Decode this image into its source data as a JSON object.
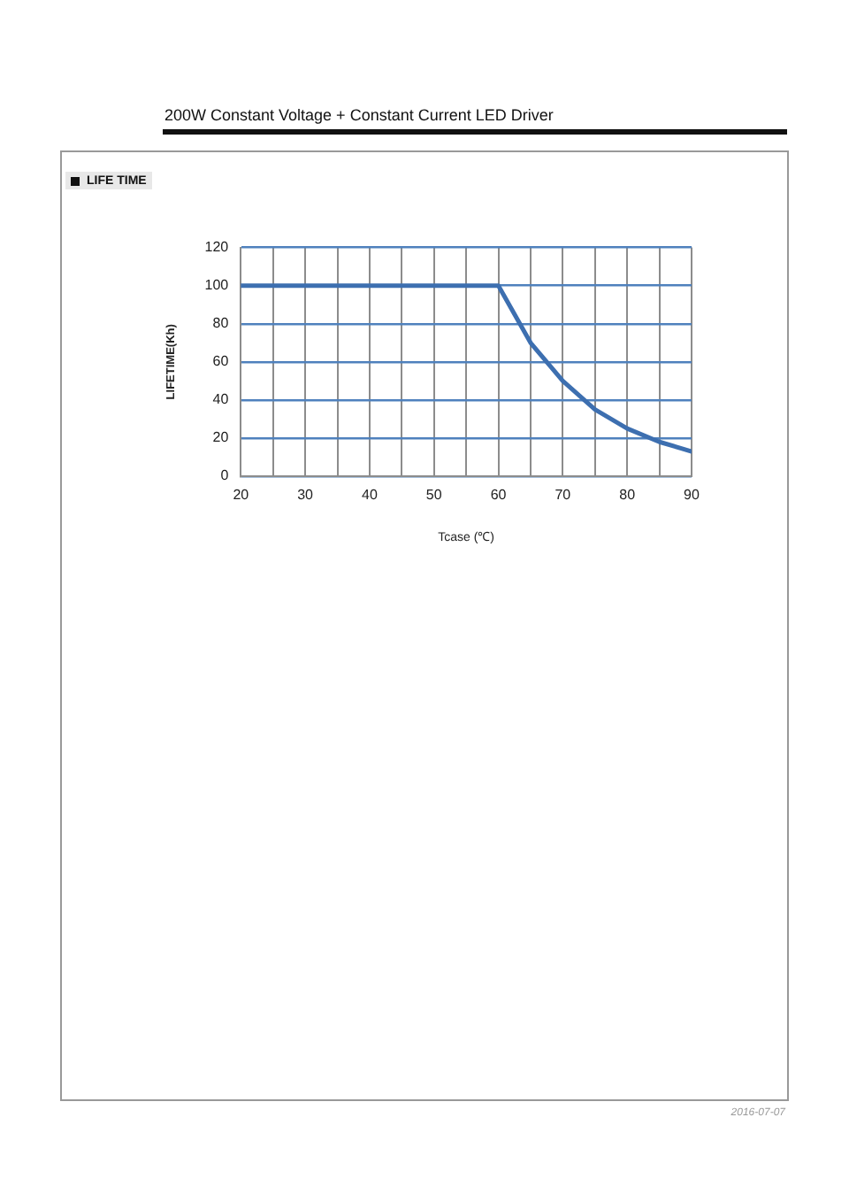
{
  "chart_data": {
    "type": "line",
    "title": "LIFE TIME",
    "subtitle": "200W Constant Voltage + Constant Current LED Driver",
    "xlabel": "Tcase (℃)",
    "ylabel": "LIFETIME(Kh)",
    "annotations": [
      "2016-07-07"
    ],
    "x": [
      20,
      60,
      65,
      70,
      75,
      80,
      85,
      90
    ],
    "series": [
      {
        "color": "#3d6fb0",
        "values": [
          100,
          100,
          70,
          50,
          35,
          25,
          18,
          13
        ]
      }
    ],
    "xlim": [
      20,
      90
    ],
    "xticks": [
      20,
      {
        "value": 25,
        "label": null
      },
      30,
      {
        "value": 35,
        "label": null
      },
      40,
      {
        "value": 45,
        "label": null
      },
      50,
      {
        "value": 55,
        "label": null
      },
      60,
      {
        "value": 65,
        "label": null
      },
      70,
      {
        "value": 75,
        "label": null
      },
      80,
      {
        "value": 85,
        "label": null
      },
      90
    ],
    "ylim": [
      0,
      120
    ],
    "yticks": [
      0,
      20,
      40,
      60,
      80,
      100,
      120
    ],
    "grid": true,
    "marker": "none",
    "line_style": "solid"
  }
}
